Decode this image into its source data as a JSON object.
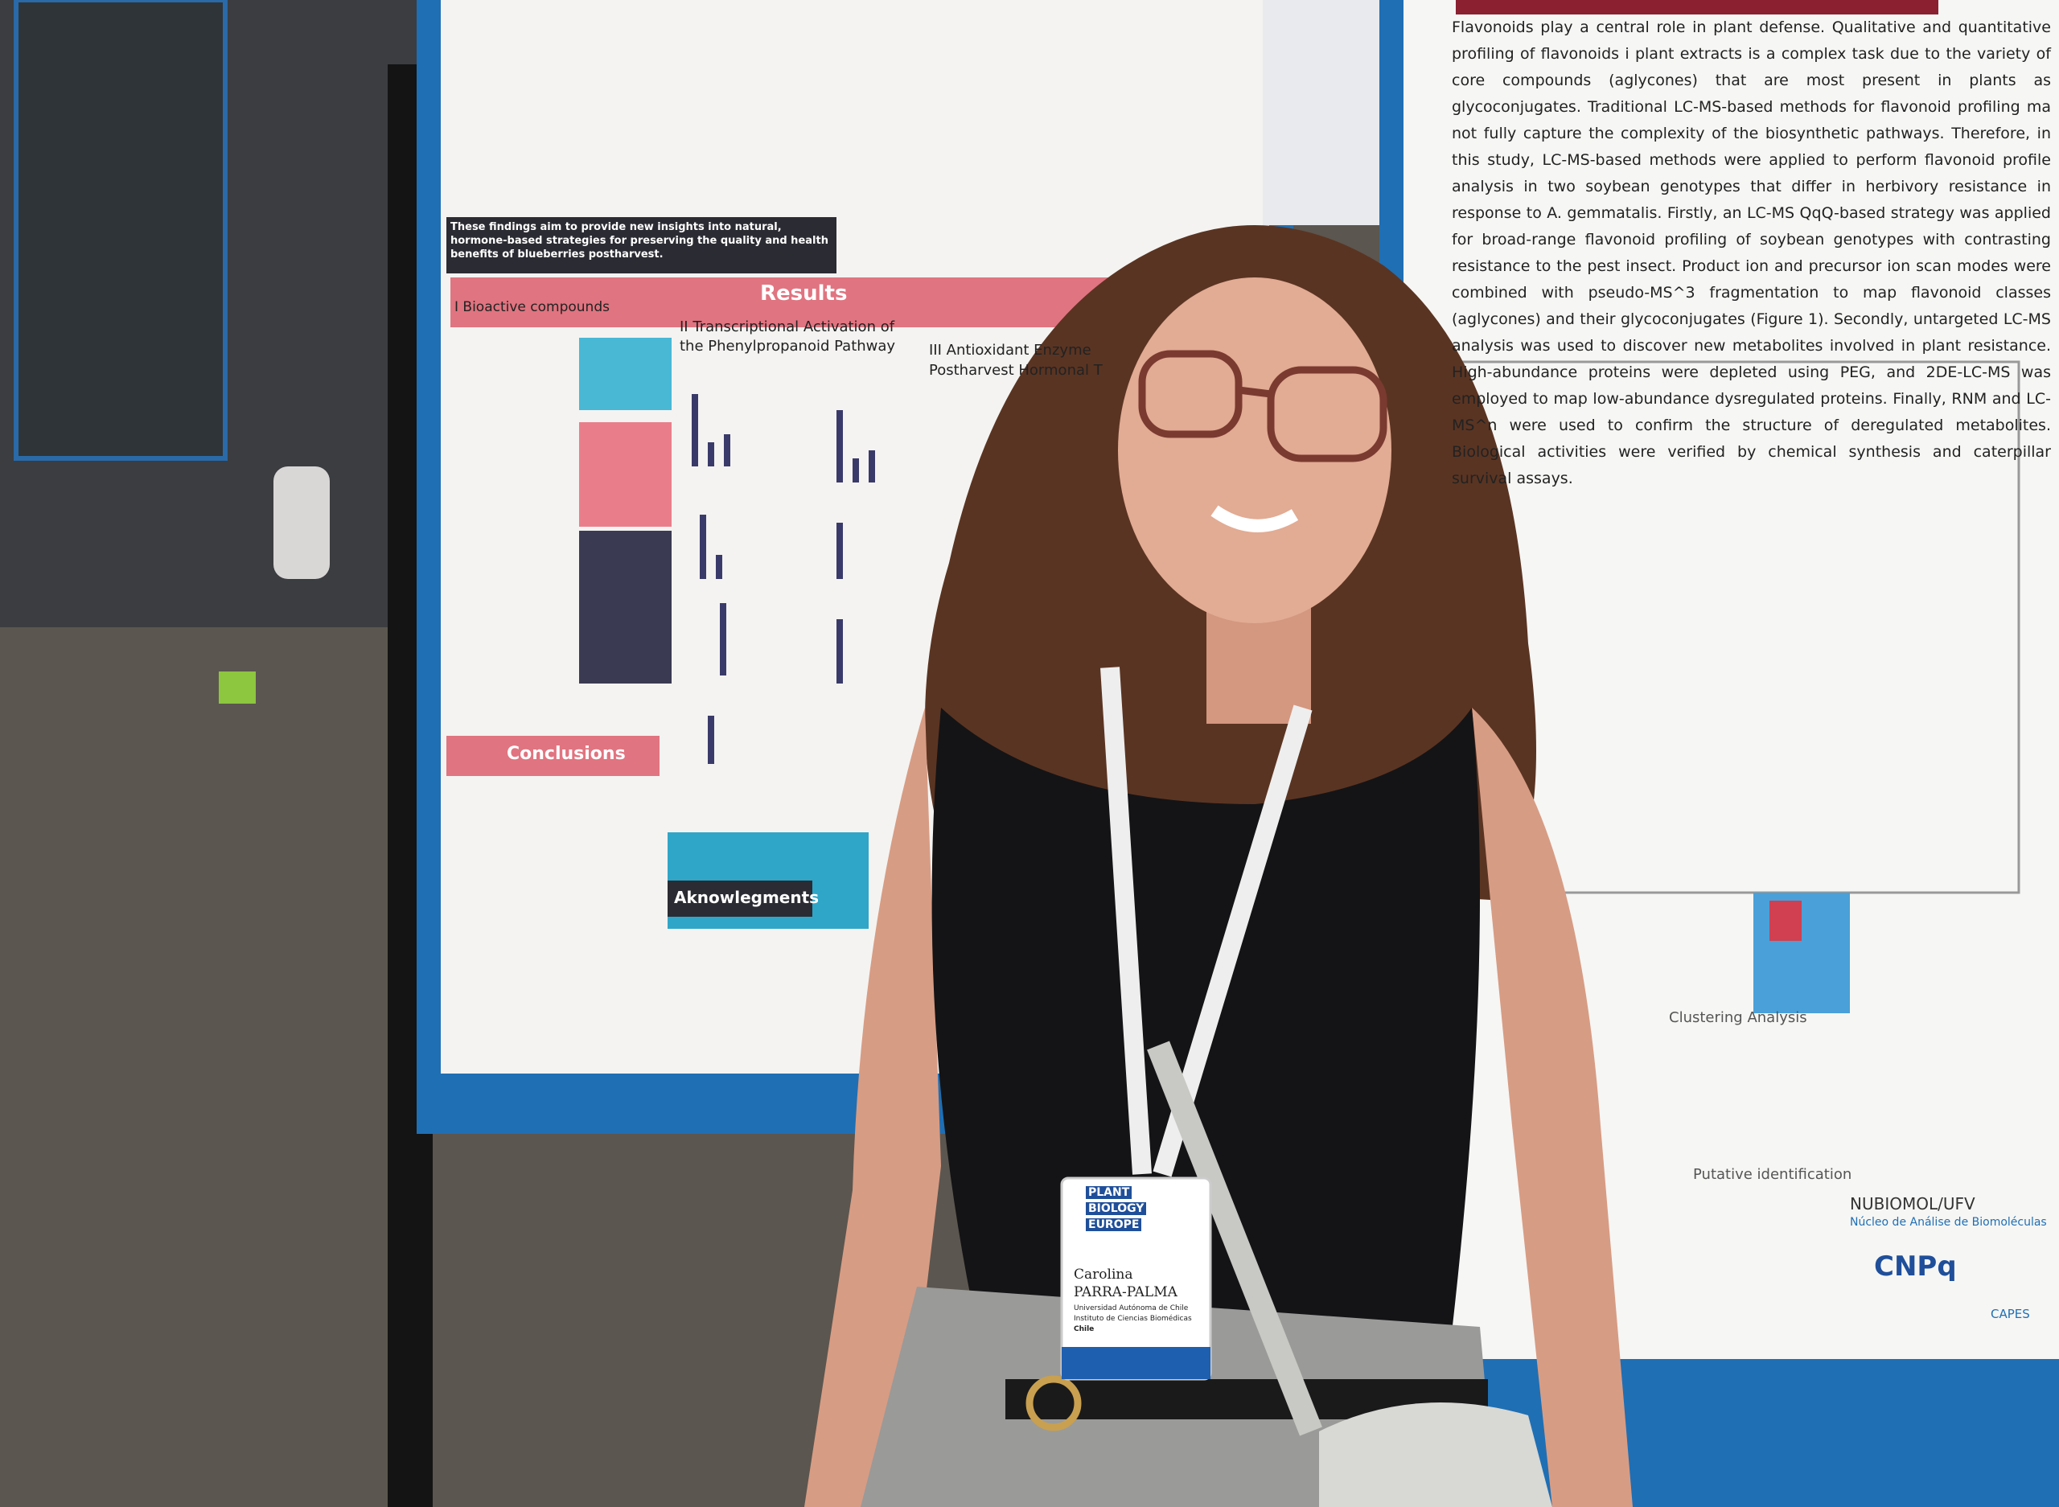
{
  "left_poster": {
    "section_results": "Results",
    "section_bioactive": "I Bioactive compounds",
    "section_transcriptional": "II Transcriptional Activation of the Phenylpropanoid Pathway",
    "section_antioxidant": "III Antioxidant Enzyme",
    "section_antioxidant_2": "Postharvest Hormonal T",
    "section_conclusions": "Conclusions",
    "section_acknowledgments": "Aknowlegments",
    "intro_highlight": "These findings aim to provide new insights into natural, hormone-based strategies for preserving the quality and health benefits of blueberries postharvest."
  },
  "right_poster": {
    "intro": "Flavonoids play a central role in plant defense. Qualitative and quantitative profiling of flavonoids i plant extracts is a complex task due to the variety of core compounds (aglycones) that are most present in plants as glycoconjugates. Traditional LC-MS-based methods for flavonoid profiling ma not fully capture the complexity of the biosynthetic pathways. Therefore, in this study, LC-MS-based methods were applied to perform flavonoid profile analysis in two soybean genotypes that differ in herbivory resistance in response to A. gemmatalis. Firstly, an LC-MS QqQ-based strategy was applied for broad-range flavonoid profiling of soybean genotypes with contrasting resistance to the pest insect. Product ion and precursor ion scan modes were combined with pseudo-MS^3 fragmentation to map flavonoid classes (aglycones) and their glycoconjugates (Figure 1). Secondly, untargeted LC-MS analysis was used to discover new metabolites involved in plant resistance. High-abundance proteins were depleted using PEG, and 2DE-LC-MS was employed to map low-abundance dysregulated proteins. Finally, RNM and LC-MS^n were used to confirm the structure of deregulated metabolites. Biological activities were verified by chemical synthesis and caterpillar survival assays.",
    "label_clustering": "Clustering Analysis",
    "label_putative": "Putative identification",
    "institution": "NUBIOMOL/UFV",
    "institution_full": "Núcleo de Análise de Biomoléculas",
    "funder_1": "CNPq",
    "funder_2": "CAPES"
  },
  "badge": {
    "event_1": "PLANT",
    "event_2": "BIOLOGY",
    "event_3": "EUROPE",
    "name_first": "Carolina",
    "name_last": "PARRA-PALMA",
    "affiliation": "Universidad Autónoma de Chile",
    "institute": "Instituto de Ciencias Biomédicas",
    "country": "Chile"
  }
}
